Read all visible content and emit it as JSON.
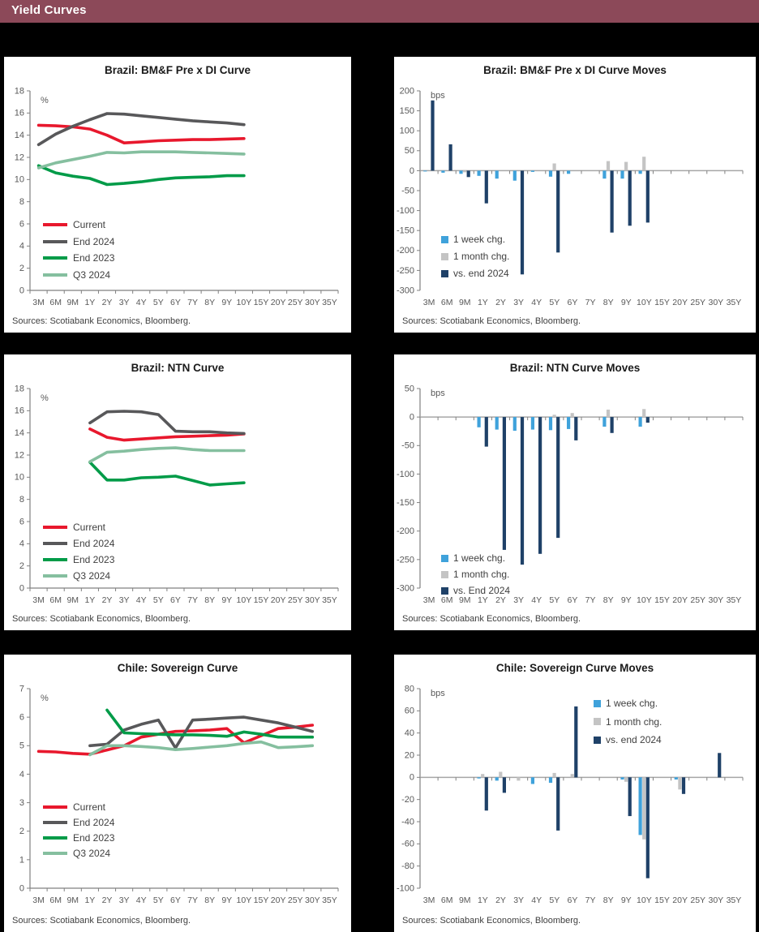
{
  "header": {
    "title": "Yield Curves"
  },
  "sources_label": "Sources: Scotiabank Economics, Bloomberg.",
  "colors": {
    "header_bg": "#8C4959",
    "page_bg": "#000000",
    "panel_bg": "#FFFFFF",
    "axis": "#808080",
    "zero_line": "#A6A6A6",
    "tick_text": "#595959",
    "title_text": "#1A1A1A",
    "sources_text": "#3F3F3F",
    "current": "#E8182D",
    "end2024_line": "#58585A",
    "end2023_line": "#009B48",
    "q32024_line": "#85BF9F",
    "week_bar": "#3FA2DB",
    "month_bar": "#C4C4C4",
    "end2024_bar": "#1F4168"
  },
  "categories": [
    "3M",
    "6M",
    "9M",
    "1Y",
    "2Y",
    "3Y",
    "4Y",
    "5Y",
    "6Y",
    "7Y",
    "8Y",
    "9Y",
    "10Y",
    "15Y",
    "20Y",
    "25Y",
    "30Y",
    "35Y"
  ],
  "chart_data": [
    {
      "id": "bmf-curve",
      "type": "line",
      "title": "Brazil: BM&F Pre x DI Curve",
      "unit": "%",
      "ylim": [
        0,
        18
      ],
      "ytick_step": 2,
      "legend_position": "bottom-left-inside",
      "series": [
        {
          "name": "Current",
          "color": "current",
          "values": [
            14.9,
            14.85,
            14.75,
            14.55,
            14.0,
            13.3,
            13.4,
            13.5,
            13.55,
            13.6,
            13.6,
            13.65,
            13.7,
            null,
            null,
            null,
            null,
            null
          ]
        },
        {
          "name": "End 2024",
          "color": "end2024_line",
          "values": [
            13.15,
            14.1,
            14.8,
            15.4,
            15.95,
            15.9,
            15.75,
            15.6,
            15.45,
            15.3,
            15.2,
            15.1,
            14.95,
            null,
            null,
            null,
            null,
            null
          ]
        },
        {
          "name": "End 2023",
          "color": "end2023_line",
          "values": [
            11.25,
            10.6,
            10.3,
            10.1,
            9.55,
            9.65,
            9.8,
            10.0,
            10.15,
            10.2,
            10.25,
            10.35,
            10.35,
            null,
            null,
            null,
            null,
            null
          ]
        },
        {
          "name": "Q3 2024",
          "color": "q32024_line",
          "values": [
            11.05,
            11.5,
            11.8,
            12.1,
            12.45,
            12.4,
            12.5,
            12.5,
            12.5,
            12.45,
            12.4,
            12.35,
            12.3,
            null,
            null,
            null,
            null,
            null
          ]
        }
      ]
    },
    {
      "id": "bmf-curve-moves",
      "type": "bar",
      "title": "Brazil: BM&F Pre x DI Curve Moves",
      "unit": "bps",
      "ylim": [
        -300,
        200
      ],
      "ytick_step": 50,
      "legend_position": "mid-left-inside",
      "series": [
        {
          "name": "1 week chg.",
          "color": "week_bar",
          "values": [
            -2,
            -5,
            -8,
            -13,
            -20,
            -25,
            -3,
            -15,
            -8,
            null,
            -20,
            -20,
            -8,
            null,
            null,
            null,
            null,
            null
          ]
        },
        {
          "name": "1 month chg.",
          "color": "month_bar",
          "values": [
            null,
            null,
            -4,
            null,
            null,
            null,
            null,
            18,
            null,
            null,
            24,
            22,
            35,
            null,
            null,
            null,
            null,
            null
          ]
        },
        {
          "name": "vs. end 2024",
          "color": "end2024_bar",
          "values": [
            176,
            66,
            -16,
            -82,
            null,
            -260,
            null,
            -205,
            null,
            null,
            -155,
            -138,
            -130,
            null,
            null,
            null,
            null,
            null
          ]
        }
      ]
    },
    {
      "id": "ntn-curve",
      "type": "line",
      "title": "Brazil: NTN Curve",
      "unit": "%",
      "ylim": [
        0,
        18
      ],
      "ytick_step": 2,
      "legend_position": "bottom-left-inside",
      "series": [
        {
          "name": "Current",
          "color": "current",
          "values": [
            null,
            null,
            null,
            14.35,
            13.6,
            13.35,
            13.45,
            13.55,
            13.65,
            13.7,
            13.75,
            13.8,
            13.9,
            null,
            null,
            null,
            null,
            null
          ]
        },
        {
          "name": "End 2024",
          "color": "end2024_line",
          "values": [
            null,
            null,
            null,
            14.9,
            15.9,
            15.95,
            15.9,
            15.65,
            14.15,
            14.1,
            14.1,
            14.0,
            13.95,
            null,
            null,
            null,
            null,
            null
          ]
        },
        {
          "name": "End 2023",
          "color": "end2023_line",
          "values": [
            null,
            null,
            null,
            11.35,
            9.75,
            9.75,
            9.95,
            10.0,
            10.1,
            9.7,
            9.3,
            9.4,
            9.5,
            null,
            null,
            null,
            null,
            null
          ]
        },
        {
          "name": "Q3 2024",
          "color": "q32024_line",
          "values": [
            null,
            null,
            null,
            11.4,
            12.25,
            12.35,
            12.5,
            12.6,
            12.65,
            12.5,
            12.4,
            12.4,
            12.4,
            null,
            null,
            null,
            null,
            null
          ]
        }
      ]
    },
    {
      "id": "ntn-curve-moves",
      "type": "bar",
      "title": "Brazil: NTN Curve Moves",
      "unit": "bps",
      "ylim": [
        -300,
        50
      ],
      "ytick_step": 50,
      "legend_position": "bottom-left-inside",
      "series": [
        {
          "name": "1 week chg.",
          "color": "week_bar",
          "values": [
            null,
            null,
            null,
            -18,
            -22,
            -24,
            -22,
            -23,
            -21,
            null,
            -17,
            null,
            -17,
            null,
            null,
            null,
            null,
            null
          ]
        },
        {
          "name": "1 month chg.",
          "color": "month_bar",
          "values": [
            null,
            null,
            null,
            null,
            null,
            null,
            null,
            4,
            7,
            null,
            13,
            null,
            14,
            null,
            null,
            null,
            null,
            null
          ]
        },
        {
          "name": "vs. End 2024",
          "color": "end2024_bar",
          "values": [
            null,
            null,
            null,
            -52,
            -233,
            -259,
            -240,
            -212,
            -41,
            null,
            -28,
            null,
            -10,
            null,
            null,
            null,
            null,
            null
          ]
        }
      ]
    },
    {
      "id": "chile-sovereign-curve",
      "type": "line",
      "title": "Chile: Sovereign Curve",
      "unit": "%",
      "ylim": [
        0,
        7
      ],
      "ytick_step": 1,
      "legend_position": "bottom-left-inside",
      "series": [
        {
          "name": "Current",
          "color": "current",
          "values": [
            4.8,
            4.78,
            4.73,
            4.7,
            4.85,
            5.0,
            5.3,
            5.4,
            5.5,
            5.52,
            5.55,
            5.6,
            5.1,
            5.35,
            5.6,
            5.65,
            5.72,
            null
          ]
        },
        {
          "name": "End 2024",
          "color": "end2024_line",
          "values": [
            null,
            null,
            null,
            5.0,
            5.05,
            5.55,
            5.75,
            5.9,
            4.92,
            5.9,
            5.93,
            5.97,
            6.0,
            5.9,
            5.8,
            5.65,
            5.5,
            null
          ]
        },
        {
          "name": "End 2023",
          "color": "end2023_line",
          "values": [
            null,
            null,
            null,
            null,
            6.25,
            5.45,
            5.42,
            5.4,
            5.38,
            5.38,
            5.36,
            5.33,
            5.48,
            5.4,
            5.3,
            5.3,
            5.3,
            null
          ]
        },
        {
          "name": "Q3 2024",
          "color": "q32024_line",
          "values": [
            null,
            null,
            null,
            4.68,
            5.0,
            5.0,
            4.97,
            4.93,
            4.86,
            4.9,
            4.95,
            5.0,
            5.08,
            5.13,
            4.93,
            4.96,
            5.0,
            null
          ]
        }
      ]
    },
    {
      "id": "chile-sovereign-curve-moves",
      "type": "bar",
      "title": "Chile: Sovereign Curve Moves",
      "unit": "bps",
      "ylim": [
        -100,
        80
      ],
      "ytick_step": 20,
      "legend_position": "top-right-inside",
      "series": [
        {
          "name": "1 week chg.",
          "color": "week_bar",
          "values": [
            null,
            null,
            null,
            -1,
            -3,
            null,
            -6,
            -5,
            null,
            null,
            null,
            -2,
            -52,
            null,
            -2,
            null,
            null,
            null
          ]
        },
        {
          "name": "1 month chg.",
          "color": "month_bar",
          "values": [
            null,
            null,
            null,
            3,
            5,
            -3,
            null,
            4,
            3,
            null,
            null,
            -4,
            -56,
            null,
            -11,
            null,
            null,
            null
          ]
        },
        {
          "name": "vs. end 2024",
          "color": "end2024_bar",
          "values": [
            null,
            null,
            null,
            -30,
            -14,
            null,
            null,
            -48,
            64,
            null,
            null,
            -35,
            -91,
            null,
            -15,
            null,
            22,
            null
          ]
        }
      ]
    }
  ]
}
